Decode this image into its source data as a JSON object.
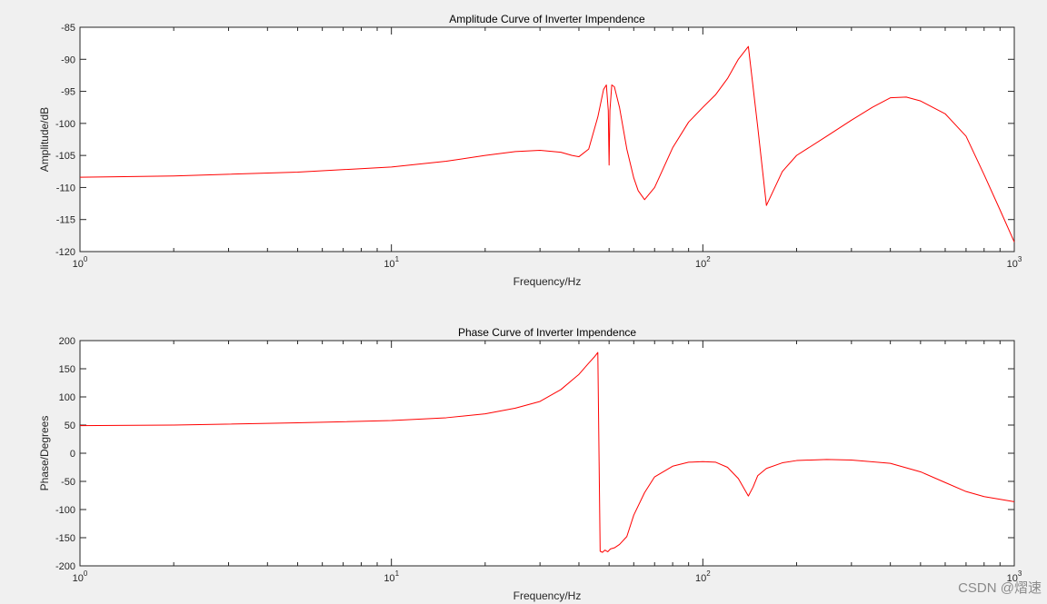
{
  "chart_data": [
    {
      "type": "line",
      "title": "Amplitude Curve of Inverter Impendence",
      "xlabel": "Frequency/Hz",
      "ylabel": "Amplitude/dB",
      "xscale": "log",
      "xlim": [
        1,
        1000
      ],
      "ylim": [
        -120,
        -85
      ],
      "yticks": [
        -85,
        -90,
        -95,
        -100,
        -105,
        -110,
        -115,
        -120
      ],
      "xticks": [
        {
          "value": 1,
          "base": "10",
          "exp": "0"
        },
        {
          "value": 10,
          "base": "10",
          "exp": "1"
        },
        {
          "value": 100,
          "base": "10",
          "exp": "2"
        },
        {
          "value": 1000,
          "base": "10",
          "exp": "3"
        }
      ],
      "grid": false,
      "color": "#ff0000",
      "series": [
        {
          "x": [
            1,
            2,
            5,
            10,
            15,
            20,
            25,
            30,
            35,
            38,
            40,
            43,
            46,
            48,
            49,
            49.7,
            50,
            50.3,
            51,
            52,
            54,
            57,
            60,
            62,
            65,
            70,
            80,
            90,
            100,
            110,
            120,
            130,
            140,
            150,
            160,
            180,
            200,
            250,
            300,
            350,
            400,
            450,
            500,
            600,
            700,
            800,
            900,
            1000
          ],
          "y": [
            -108.4,
            -108.2,
            -107.6,
            -106.8,
            -105.9,
            -105.0,
            -104.4,
            -104.2,
            -104.5,
            -105.0,
            -105.2,
            -104.0,
            -99.0,
            -94.7,
            -94.0,
            -98.0,
            -106.5,
            -98.0,
            -94.0,
            -94.3,
            -97.5,
            -104.0,
            -108.5,
            -110.5,
            -111.9,
            -110.0,
            -103.8,
            -99.8,
            -97.5,
            -95.5,
            -93.0,
            -90.0,
            -88.0,
            -100.5,
            -112.8,
            -107.5,
            -105.0,
            -102.0,
            -99.5,
            -97.5,
            -96.0,
            -95.9,
            -96.5,
            -98.5,
            -102.0,
            -108.0,
            -113.5,
            -118.5
          ]
        }
      ]
    },
    {
      "type": "line",
      "title": "Phase Curve of Inverter Impendence",
      "xlabel": "Frequency/Hz",
      "ylabel": "Phase/Degrees",
      "xscale": "log",
      "xlim": [
        1,
        1000
      ],
      "ylim": [
        -200,
        200
      ],
      "yticks": [
        200,
        150,
        100,
        50,
        0,
        -50,
        -100,
        -150,
        -200
      ],
      "xticks": [
        {
          "value": 1,
          "base": "10",
          "exp": "0"
        },
        {
          "value": 10,
          "base": "10",
          "exp": "1"
        },
        {
          "value": 100,
          "base": "10",
          "exp": "2"
        },
        {
          "value": 1000,
          "base": "10",
          "exp": "3"
        }
      ],
      "grid": false,
      "color": "#ff0000",
      "series": [
        {
          "x": [
            1,
            2,
            5,
            10,
            15,
            20,
            25,
            30,
            35,
            40,
            43,
            45,
            46,
            46.8,
            47.6,
            48.5,
            49.5,
            50.5,
            52,
            54,
            57,
            60,
            65,
            70,
            80,
            90,
            100,
            110,
            120,
            130,
            140,
            145,
            150,
            160,
            180,
            200,
            250,
            300,
            400,
            500,
            600,
            700,
            800,
            1000
          ],
          "y": [
            49,
            50,
            54,
            58,
            63,
            70,
            80,
            92,
            113,
            140,
            160,
            172,
            179,
            -174,
            -176,
            -172,
            -175,
            -170,
            -168,
            -162,
            -148,
            -110,
            -70,
            -42,
            -23,
            -16,
            -15,
            -16,
            -25,
            -45,
            -76,
            -60,
            -40,
            -27,
            -17,
            -13,
            -11,
            -12,
            -18,
            -33,
            -52,
            -68,
            -77,
            -86
          ]
        }
      ]
    }
  ],
  "watermark": "CSDN @熠速"
}
